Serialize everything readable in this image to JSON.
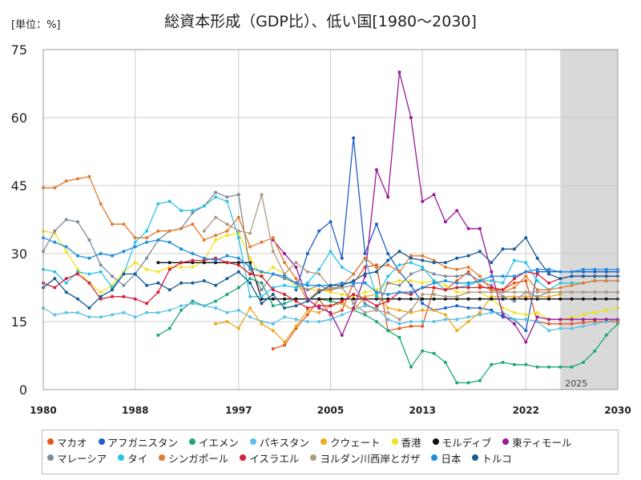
{
  "chart_data": {
    "type": "line",
    "title": "総資本形成（GDP比）、低い国[1980～2030]",
    "unit_label": "[単位：%]",
    "xlim": [
      1980,
      2030
    ],
    "ylim": [
      0,
      75
    ],
    "x_ticks": [
      1980,
      1988,
      1997,
      2005,
      2013,
      2022,
      2030
    ],
    "y_ticks": [
      0,
      15,
      30,
      45,
      60,
      75
    ],
    "forecast_start": 2025,
    "forecast_label": "2025",
    "grid": true,
    "legend_position": "bottom",
    "series": [
      {
        "name": "マカオ",
        "color": "#e8581c",
        "start": 2000,
        "values": [
          9.0,
          9.8,
          13.5,
          16.5,
          20.0,
          16.5,
          17.5,
          23.5,
          27.0,
          27.5,
          13.0,
          13.5,
          14.0,
          14.0,
          22.5,
          22.0,
          24.0,
          26.0,
          23.0,
          22.0,
          22.0,
          23.5,
          24.0,
          15.0,
          14.5,
          14.5,
          14.5,
          14.8,
          15.0,
          15.0,
          15.0
        ]
      },
      {
        "name": "アフガニスタン",
        "color": "#1f5fc8",
        "start": 2002,
        "values": [
          22.0,
          30.0,
          35.0,
          37.0,
          29.0,
          55.5,
          30.0,
          36.5,
          30.0,
          26.0,
          23.0,
          19.0,
          17.5,
          18.0,
          18.5,
          18.0,
          18.0,
          17.5,
          16.0,
          15.5,
          13.0,
          26.0,
          26.0,
          26.0,
          26.0,
          26.0,
          26.0,
          26.0,
          26.0
        ]
      },
      {
        "name": "イエメン",
        "color": "#1aa67a",
        "start": 1990,
        "values": [
          12.0,
          13.5,
          17.5,
          19.5,
          18.5,
          19.5,
          21.0,
          22.5,
          24.5,
          23.5,
          18.5,
          19.0,
          20.0,
          20.0,
          20.0,
          19.5,
          19.0,
          17.5,
          16.5,
          15.0,
          13.0,
          11.5,
          5.0,
          8.5,
          8.0,
          6.0,
          1.5,
          1.5,
          2.0,
          5.5,
          6.0,
          5.5,
          5.5,
          5.0,
          5.0,
          5.0,
          5.0,
          6.0,
          8.5,
          12.0,
          14.5
        ]
      },
      {
        "name": "パキスタン",
        "color": "#5ac1e8",
        "start": 1980,
        "values": [
          18.0,
          16.5,
          17.0,
          17.0,
          16.0,
          16.0,
          16.5,
          17.0,
          16.0,
          17.0,
          17.0,
          17.5,
          18.5,
          19.0,
          18.5,
          18.0,
          17.0,
          17.5,
          16.0,
          15.0,
          14.5,
          16.0,
          15.5,
          15.0,
          15.0,
          15.5,
          16.5,
          17.5,
          18.5,
          18.0,
          15.5,
          14.5,
          15.0,
          15.0,
          15.0,
          15.5,
          15.5,
          16.0,
          16.5,
          17.0,
          17.0,
          15.5,
          15.5,
          15.0,
          13.0,
          13.5,
          13.5,
          14.0,
          14.5,
          15.0,
          15.5
        ]
      },
      {
        "name": "クウェート",
        "color": "#f0a81e",
        "start": 1995,
        "values": [
          14.5,
          15.0,
          13.5,
          18.0,
          14.5,
          13.0,
          10.5,
          14.0,
          17.5,
          17.0,
          18.5,
          19.0,
          17.5,
          20.5,
          21.0,
          18.0,
          17.5,
          17.0,
          17.5,
          17.5,
          16.5,
          13.0,
          15.0,
          17.0,
          20.5,
          20.5,
          20.5,
          20.5,
          20.5,
          20.5,
          21.0
        ]
      },
      {
        "name": "香港",
        "color": "#f2e21c",
        "start": 1980,
        "values": [
          35.0,
          34.5,
          30.5,
          26.5,
          23.5,
          21.5,
          23.0,
          26.0,
          28.0,
          26.5,
          26.0,
          27.0,
          27.0,
          27.0,
          28.5,
          33.0,
          34.0,
          34.5,
          29.0,
          25.0,
          27.0,
          25.5,
          22.5,
          22.0,
          22.0,
          21.5,
          21.0,
          20.5,
          21.5,
          22.0,
          23.5,
          24.0,
          24.0,
          23.5,
          24.0,
          23.0,
          21.5,
          21.5,
          21.5,
          20.0,
          18.0,
          17.0,
          16.5,
          17.0,
          15.5,
          15.5,
          16.0,
          16.5,
          17.0,
          17.5,
          18.0
        ]
      },
      {
        "name": "モルディブ",
        "color": "#111111",
        "start": 1990,
        "values": [
          28.0,
          28.0,
          28.0,
          28.0,
          28.0,
          28.0,
          28.0,
          28.0,
          28.0,
          20.0,
          20.0,
          20.0,
          20.0,
          20.0,
          20.0,
          20.0,
          20.0,
          20.0,
          20.0,
          20.0,
          20.0,
          20.0,
          20.0,
          20.0,
          20.0,
          20.0,
          20.0,
          20.0,
          20.0,
          20.0,
          20.0,
          20.0,
          20.0,
          20.0,
          20.0,
          20.0,
          20.0,
          20.0,
          20.0,
          20.0,
          20.0
        ]
      },
      {
        "name": "東ティモール",
        "color": "#9b1a9b",
        "start": 2000,
        "values": [
          33.0,
          30.0,
          27.0,
          20.0,
          18.0,
          17.0,
          12.0,
          18.0,
          25.0,
          48.5,
          42.5,
          70.0,
          60.0,
          41.5,
          43.0,
          37.0,
          39.5,
          35.5,
          35.5,
          26.0,
          16.5,
          14.5,
          10.5,
          16.0,
          15.5,
          15.5,
          15.5,
          15.5,
          15.5,
          15.5,
          15.5
        ]
      },
      {
        "name": "マレーシア",
        "color": "#7f8c9a",
        "start": 1980,
        "values": [
          30.5,
          35.0,
          37.5,
          37.0,
          33.0,
          27.5,
          25.0,
          23.0,
          25.5,
          29.0,
          33.0,
          35.0,
          35.5,
          39.0,
          40.5,
          43.5,
          42.5,
          43.0,
          26.5,
          22.0,
          25.5,
          24.5,
          23.5,
          22.0,
          23.0,
          22.0,
          22.5,
          23.0,
          19.0,
          17.5,
          23.5,
          23.0,
          25.5,
          26.5,
          25.5,
          25.0,
          25.0,
          25.5,
          24.0,
          23.0,
          20.5,
          19.5,
          21.5,
          20.5,
          21.5,
          21.5,
          21.5,
          21.5,
          21.5,
          21.5,
          21.5
        ]
      },
      {
        "name": "タイ",
        "color": "#2cc3e6",
        "start": 1980,
        "values": [
          26.5,
          26.0,
          23.5,
          26.0,
          25.5,
          26.0,
          22.5,
          25.5,
          32.5,
          35.0,
          41.0,
          41.5,
          39.5,
          39.5,
          40.5,
          42.5,
          41.5,
          33.5,
          20.5,
          20.5,
          22.5,
          23.0,
          22.5,
          23.5,
          26.5,
          30.5,
          27.0,
          25.5,
          29.0,
          20.5,
          25.0,
          27.5,
          28.0,
          27.0,
          24.0,
          22.0,
          22.5,
          23.0,
          24.0,
          24.0,
          23.5,
          28.5,
          28.0,
          24.0,
          22.0,
          23.5,
          23.5,
          23.5,
          24.0,
          24.0,
          24.0
        ]
      },
      {
        "name": "シンガポール",
        "color": "#e47a2e",
        "start": 1980,
        "values": [
          44.5,
          44.5,
          46.0,
          46.5,
          47.0,
          41.0,
          36.5,
          36.5,
          33.5,
          33.5,
          35.0,
          35.0,
          35.5,
          36.5,
          33.0,
          34.0,
          35.0,
          38.0,
          31.5,
          32.5,
          33.5,
          28.0,
          24.5,
          19.5,
          22.0,
          22.0,
          23.0,
          25.5,
          29.0,
          27.0,
          27.5,
          26.0,
          29.5,
          29.5,
          28.5,
          27.0,
          26.5,
          27.0,
          25.0,
          22.0,
          21.5,
          22.5,
          25.0,
          22.0,
          22.0,
          22.5,
          23.0,
          23.5,
          24.0,
          24.0,
          24.0
        ]
      },
      {
        "name": "イスラエル",
        "color": "#d6203a",
        "start": 1980,
        "values": [
          23.5,
          22.5,
          24.5,
          25.5,
          23.5,
          20.0,
          20.5,
          20.5,
          20.0,
          19.0,
          21.5,
          26.5,
          28.0,
          28.5,
          28.5,
          29.0,
          28.0,
          27.5,
          25.5,
          25.0,
          22.0,
          21.0,
          19.5,
          18.0,
          18.5,
          18.5,
          19.5,
          21.0,
          20.0,
          18.5,
          19.5,
          21.5,
          21.0,
          22.5,
          22.5,
          22.0,
          22.5,
          22.5,
          22.5,
          22.5,
          22.0,
          24.5,
          26.0,
          25.5,
          23.5,
          24.5,
          25.0,
          25.0,
          25.0,
          25.0,
          25.0
        ]
      },
      {
        "name": "ヨルダン川西岸とガザ",
        "color": "#b09a82",
        "start": 1994,
        "values": [
          35.0,
          38.0,
          36.5,
          35.0,
          34.5,
          43.0,
          30.5,
          25.5,
          28.0,
          26.0,
          25.5,
          22.5,
          22.5,
          19.0,
          17.0,
          17.5,
          17.0,
          15.5,
          17.5,
          21.0,
          21.0,
          20.5,
          20.5,
          21.5,
          21.5,
          21.5,
          21.5,
          21.5,
          21.5,
          21.5,
          21.5,
          21.5,
          21.5,
          21.5,
          21.5,
          21.5,
          21.5
        ]
      },
      {
        "name": "日本",
        "color": "#1e8fe0",
        "start": 1980,
        "values": [
          33.5,
          32.5,
          31.5,
          29.5,
          29.0,
          30.0,
          29.5,
          30.5,
          31.5,
          32.5,
          33.0,
          32.5,
          31.0,
          30.0,
          29.0,
          28.5,
          29.5,
          29.0,
          27.0,
          26.0,
          25.5,
          25.0,
          23.5,
          23.0,
          23.0,
          23.0,
          23.5,
          23.5,
          23.5,
          21.5,
          21.0,
          21.5,
          21.5,
          22.5,
          23.5,
          24.0,
          23.5,
          23.5,
          24.0,
          25.0,
          25.0,
          25.0,
          26.0,
          26.5,
          26.5,
          26.0,
          26.0,
          26.5,
          26.5,
          26.5,
          26.5
        ]
      },
      {
        "name": "トルコ",
        "color": "#165d96",
        "start": 1980,
        "values": [
          22.5,
          24.5,
          21.5,
          20.0,
          18.0,
          20.5,
          22.0,
          25.5,
          25.5,
          23.0,
          23.5,
          22.0,
          23.5,
          23.5,
          24.0,
          23.0,
          24.5,
          26.0,
          23.5,
          19.0,
          21.0,
          18.0,
          18.5,
          19.5,
          21.5,
          23.0,
          23.0,
          24.0,
          25.5,
          26.0,
          28.5,
          30.5,
          29.0,
          28.5,
          28.0,
          28.0,
          29.0,
          29.5,
          30.5,
          28.0,
          31.0,
          31.0,
          33.5,
          29.0,
          25.5,
          24.5,
          25.0,
          25.0,
          25.0,
          25.0,
          25.0
        ]
      }
    ]
  }
}
